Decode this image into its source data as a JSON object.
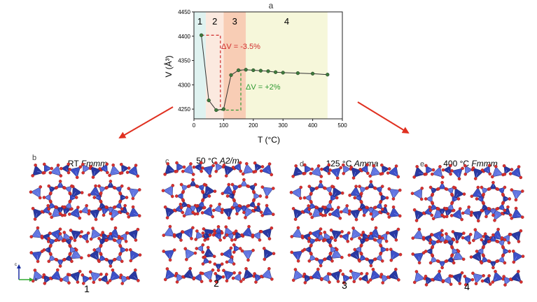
{
  "figure": {
    "panel_a_letter": "a",
    "panels": [
      {
        "letter": "b",
        "prefix": "RT ",
        "space_group": "Fmmm",
        "number": "1"
      },
      {
        "letter": "c",
        "prefix": "50 °C ",
        "space_group": "A2/m",
        "number": "2"
      },
      {
        "letter": "d",
        "prefix": "125 °C ",
        "space_group": "Amma",
        "number": "3"
      },
      {
        "letter": "e",
        "prefix": "400 °C ",
        "space_group": "Fmmm",
        "number": "4"
      }
    ],
    "axis_indicator": {
      "c_label": "c",
      "b_label": "b"
    }
  },
  "colors": {
    "zone1": "#dff2f0",
    "zone2": "#fbe9df",
    "zone3": "#f8cdb5",
    "zone4": "#f6f7da",
    "series": "#3f7a3d",
    "annotation_red": "#d02b2b",
    "annotation_green": "#2f9a32",
    "arrow_red": "#e03020",
    "tetra_dark": "#1e2f9e",
    "tetra_mid": "#3348c6",
    "tetra_light": "#5a6fe0",
    "oxygen": "#d83030"
  },
  "chart_data": {
    "type": "line",
    "xlabel": "T (°C)",
    "ylabel": "V (Å³)",
    "xlim": [
      0,
      500
    ],
    "ylim": [
      4230,
      4450
    ],
    "xticks": [
      0,
      100,
      200,
      300,
      400,
      500
    ],
    "yticks": [
      4250,
      4300,
      4350,
      4400,
      4450
    ],
    "x": [
      25,
      50,
      75,
      100,
      125,
      150,
      175,
      200,
      225,
      250,
      275,
      300,
      350,
      400,
      450
    ],
    "y": [
      4402,
      4268,
      4248,
      4250,
      4320,
      4330,
      4331,
      4330,
      4329,
      4328,
      4326,
      4325,
      4324,
      4323,
      4321
    ],
    "zones": [
      {
        "label": "1",
        "from": 0,
        "to": 40
      },
      {
        "label": "2",
        "from": 40,
        "to": 100
      },
      {
        "label": "3",
        "from": 100,
        "to": 175
      },
      {
        "label": "4",
        "from": 175,
        "to": 450
      }
    ],
    "annotations": [
      {
        "text": "ΔV = -3.5%"
      },
      {
        "text": "ΔV = +2%"
      }
    ]
  }
}
